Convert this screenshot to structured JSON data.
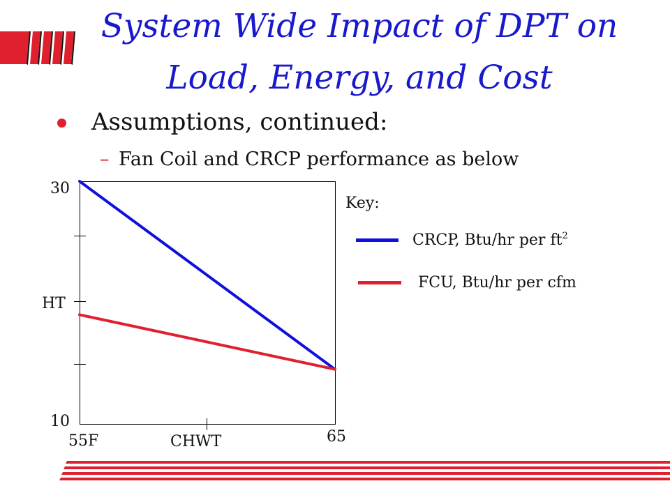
{
  "title": {
    "line1": "System Wide Impact of DPT on",
    "line2": "Load, Energy, and Cost"
  },
  "bullet": {
    "text": "Assumptions, continued:",
    "sub": {
      "dash": "–",
      "text": "Fan Coil and CRCP performance as below"
    }
  },
  "colors": {
    "title": "#1919cc",
    "accent_red": "#e0202e",
    "crcp_blue": "#1010dd"
  },
  "legend": {
    "title": "Key:",
    "items": [
      {
        "label": "CRCP, Btu/hr per ft",
        "sup": "2",
        "color": "#1010dd"
      },
      {
        "label": "FCU, Btu/hr per cfm",
        "sup": "",
        "color": "#e0202e"
      }
    ]
  },
  "chart_data": {
    "type": "line",
    "x_tick_labels": {
      "start": "55F",
      "end": "65"
    },
    "xlabel": "CHWT",
    "ylabel": "HT",
    "y_tick_labels": {
      "top": "30",
      "bottom": "10"
    },
    "xlim": [
      55,
      65
    ],
    "ylim": [
      10,
      30
    ],
    "series": [
      {
        "name": "CRCP, Btu/hr per ft2",
        "color": "#1010dd",
        "x": [
          55,
          65
        ],
        "y": [
          30,
          14.5
        ]
      },
      {
        "name": "FCU, Btu/hr per cfm",
        "color": "#e0202e",
        "x": [
          55,
          65
        ],
        "y": [
          19,
          14.5
        ]
      }
    ]
  }
}
